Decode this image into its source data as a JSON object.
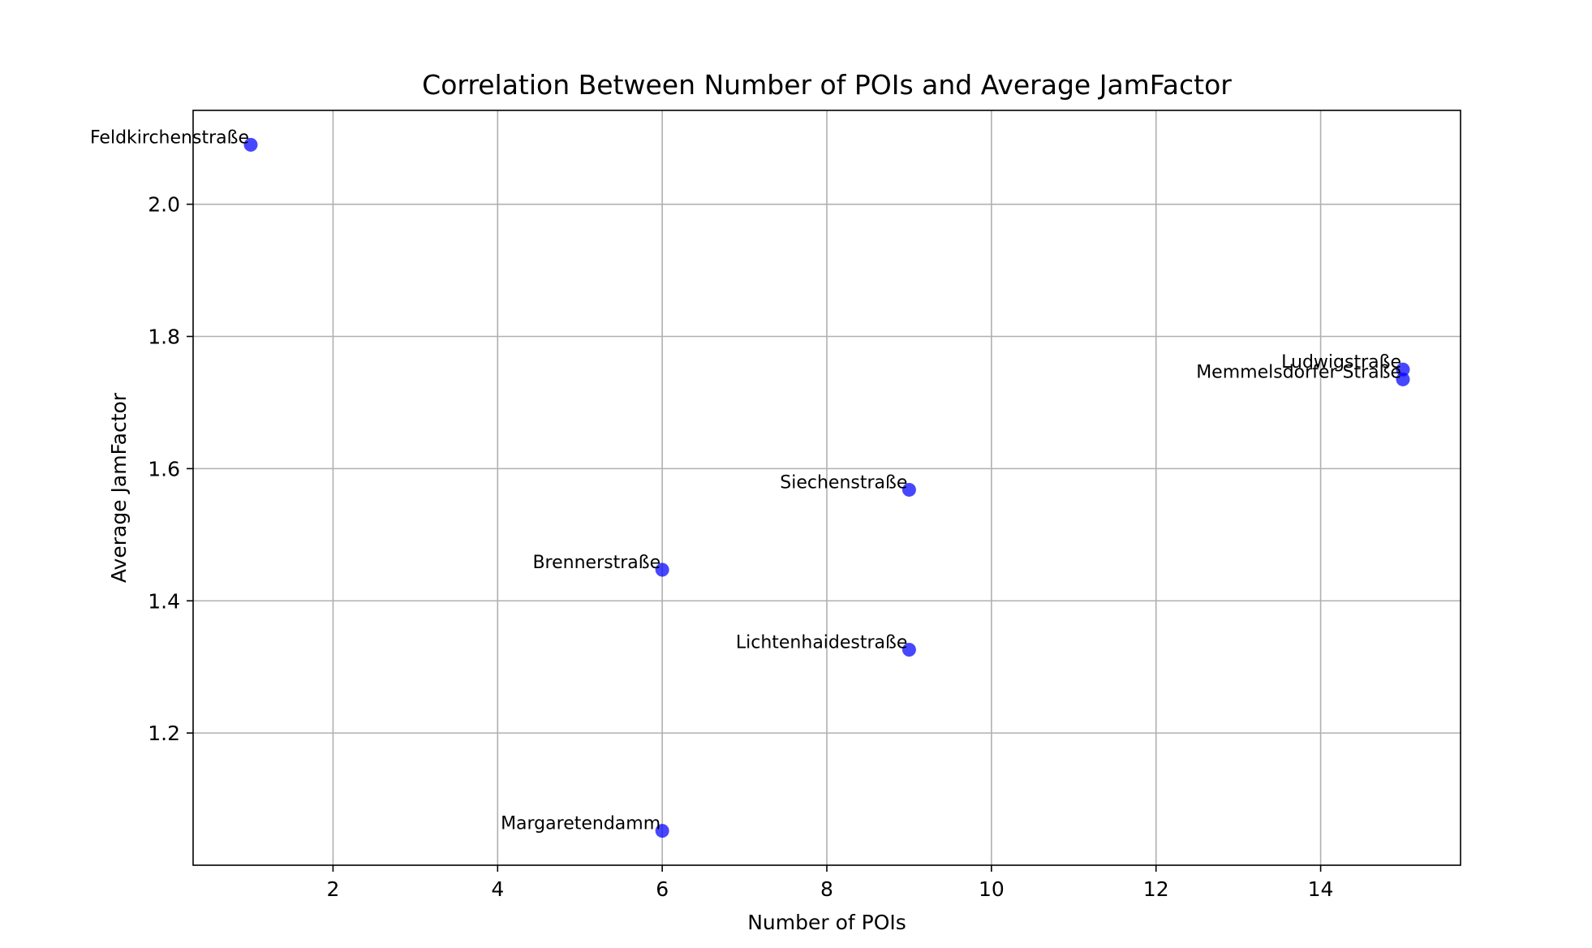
{
  "chart_data": {
    "type": "scatter",
    "title": "Correlation Between Number of POIs and Average JamFactor",
    "xlabel": "Number of POIs",
    "ylabel": "Average JamFactor",
    "xlim": [
      0.3,
      15.7
    ],
    "ylim": [
      1.0,
      2.142
    ],
    "xticks": [
      2,
      4,
      6,
      8,
      10,
      12,
      14
    ],
    "yticks": [
      1.2,
      1.4,
      1.6,
      1.8,
      2.0
    ],
    "grid": true,
    "point_color": "#0000ff",
    "points": [
      {
        "label": "Feldkirchenstraße",
        "x": 1,
        "y": 2.09
      },
      {
        "label": "Ludwigstraße",
        "x": 15,
        "y": 1.75
      },
      {
        "label": "Memmelsdorfer Straße",
        "x": 15,
        "y": 1.735
      },
      {
        "label": "Siechenstraße",
        "x": 9,
        "y": 1.568
      },
      {
        "label": "Brennerstraße",
        "x": 6,
        "y": 1.447
      },
      {
        "label": "Lichtenhaidestraße",
        "x": 9,
        "y": 1.326
      },
      {
        "label": "Margaretendamm",
        "x": 6,
        "y": 1.052
      }
    ]
  }
}
